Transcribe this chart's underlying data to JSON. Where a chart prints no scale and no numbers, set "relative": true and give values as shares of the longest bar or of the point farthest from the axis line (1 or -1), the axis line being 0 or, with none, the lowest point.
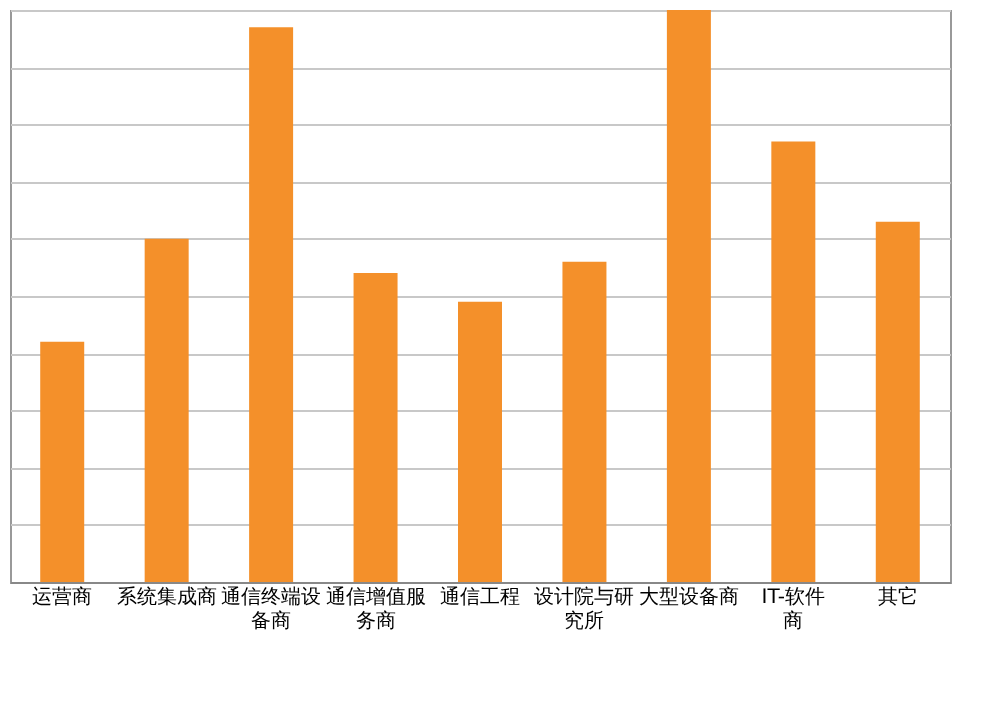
{
  "chart_data": {
    "type": "bar",
    "relative": true,
    "grid": "y",
    "color": "#f4902a",
    "categories": [
      "运营商",
      "系统集成商",
      "通信终端设备商",
      "通信增值服务商",
      "通信工程",
      "设计院与研究所",
      "大型设备商",
      "IT-软件商",
      "其它"
    ],
    "values": [
      0.42,
      0.6,
      0.97,
      0.54,
      0.49,
      0.56,
      1,
      0.77,
      0.63
    ]
  }
}
